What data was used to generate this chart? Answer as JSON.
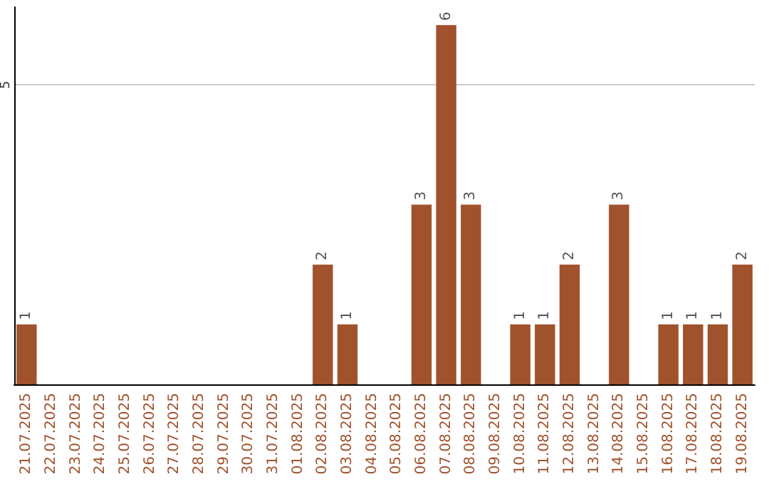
{
  "chart_data": {
    "type": "bar",
    "categories": [
      "21.07.2025",
      "22.07.2025",
      "23.07.2025",
      "24.07.2025",
      "25.07.2025",
      "26.07.2025",
      "27.07.2025",
      "28.07.2025",
      "29.07.2025",
      "30.07.2025",
      "31.07.2025",
      "01.08.2025",
      "02.08.2025",
      "03.08.2025",
      "04.08.2025",
      "05.08.2025",
      "06.08.2025",
      "07.08.2025",
      "08.08.2025",
      "09.08.2025",
      "10.08.2025",
      "11.08.2025",
      "12.08.2025",
      "13.08.2025",
      "14.08.2025",
      "15.08.2025",
      "16.08.2025",
      "17.08.2025",
      "18.08.2025",
      "19.08.2025"
    ],
    "values": [
      1,
      0,
      0,
      0,
      0,
      0,
      0,
      0,
      0,
      0,
      0,
      0,
      2,
      1,
      0,
      0,
      3,
      6,
      3,
      0,
      1,
      1,
      2,
      0,
      3,
      0,
      1,
      1,
      1,
      2
    ],
    "value_labels": [
      "1",
      null,
      null,
      null,
      null,
      null,
      null,
      null,
      null,
      null,
      null,
      null,
      "2",
      "1",
      null,
      null,
      "3",
      "6",
      "3",
      null,
      "1",
      "1",
      "2",
      null,
      "3",
      null,
      "1",
      "1",
      "1",
      "2"
    ],
    "color": "#a0522d",
    "ylim": [
      0,
      6.3
    ],
    "yticks": [
      5
    ],
    "grid": "y"
  }
}
